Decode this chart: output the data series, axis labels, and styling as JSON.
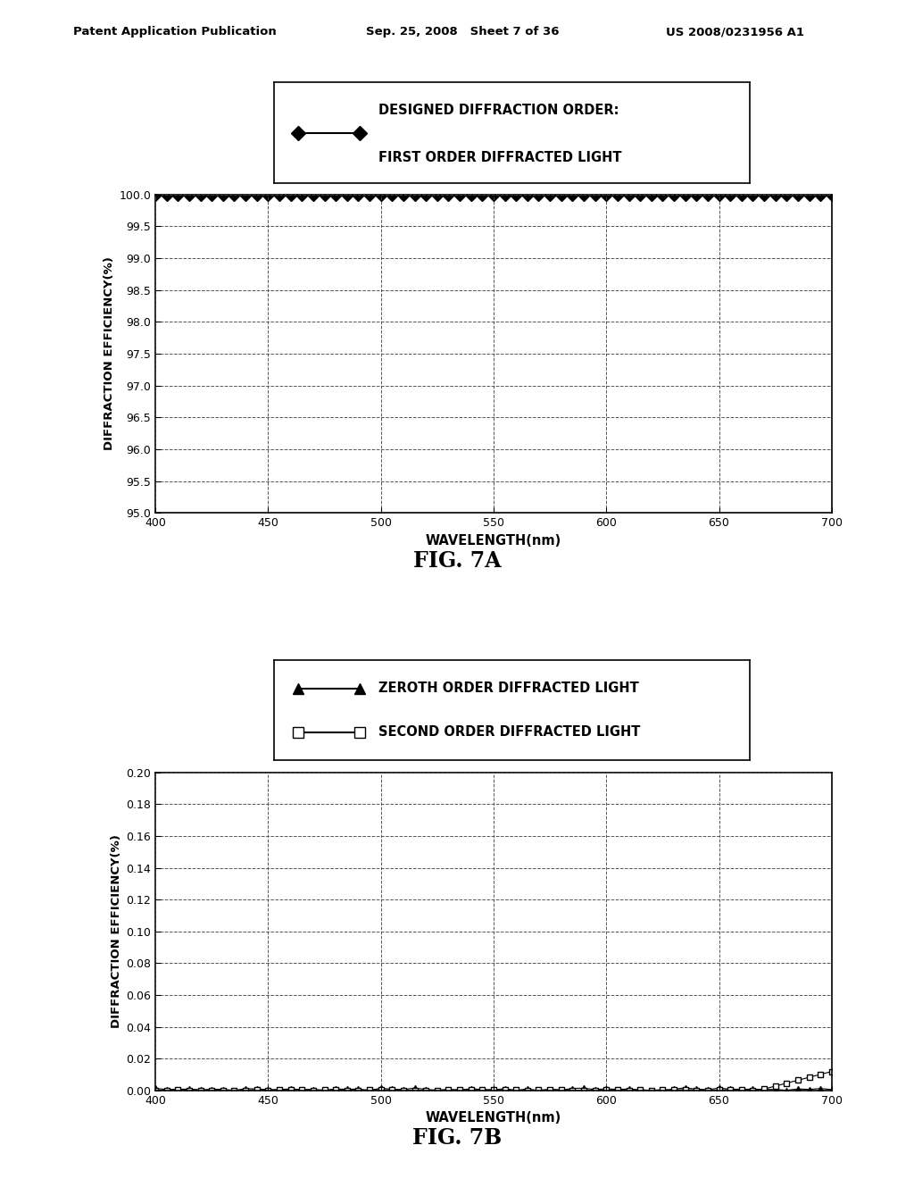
{
  "header_left": "Patent Application Publication",
  "header_mid": "Sep. 25, 2008   Sheet 7 of 36",
  "header_right": "US 2008/0231956 A1",
  "fig7a": {
    "xlabel": "WAVELENGTH(nm)",
    "ylabel": "DIFFRACTION EFFICIENCY(%)",
    "title": "FIG. 7A",
    "xlim": [
      400,
      700
    ],
    "ylim": [
      95.0,
      100.0
    ],
    "yticks": [
      95.0,
      95.5,
      96.0,
      96.5,
      97.0,
      97.5,
      98.0,
      98.5,
      99.0,
      99.5,
      100.0
    ],
    "xticks": [
      400,
      450,
      500,
      550,
      600,
      650,
      700
    ],
    "legend_line1": "DESIGNED DIFFRACTION ORDER:",
    "legend_line2": "FIRST ORDER DIFFRACTED LIGHT",
    "data_y": 100.0,
    "line_color": "#000000",
    "marker": "D",
    "marker_size": 7
  },
  "fig7b": {
    "xlabel": "WAVELENGTH(nm)",
    "ylabel": "DIFFRACTION EFFICIENCY(%)",
    "title": "FIG. 7B",
    "xlim": [
      400,
      700
    ],
    "ylim": [
      0.0,
      0.2
    ],
    "yticks": [
      0.0,
      0.02,
      0.04,
      0.06,
      0.08,
      0.1,
      0.12,
      0.14,
      0.16,
      0.18,
      0.2
    ],
    "xticks": [
      400,
      450,
      500,
      550,
      600,
      650,
      700
    ],
    "legend_label1": "ZEROTH ORDER DIFFRACTED LIGHT",
    "legend_label2": "SECOND ORDER DIFFRACTED LIGHT",
    "line_color": "#000000",
    "marker1": "^",
    "marker2": "s",
    "marker_size": 5
  },
  "background_color": "#ffffff",
  "text_color": "#000000",
  "grid_color": "#444444"
}
